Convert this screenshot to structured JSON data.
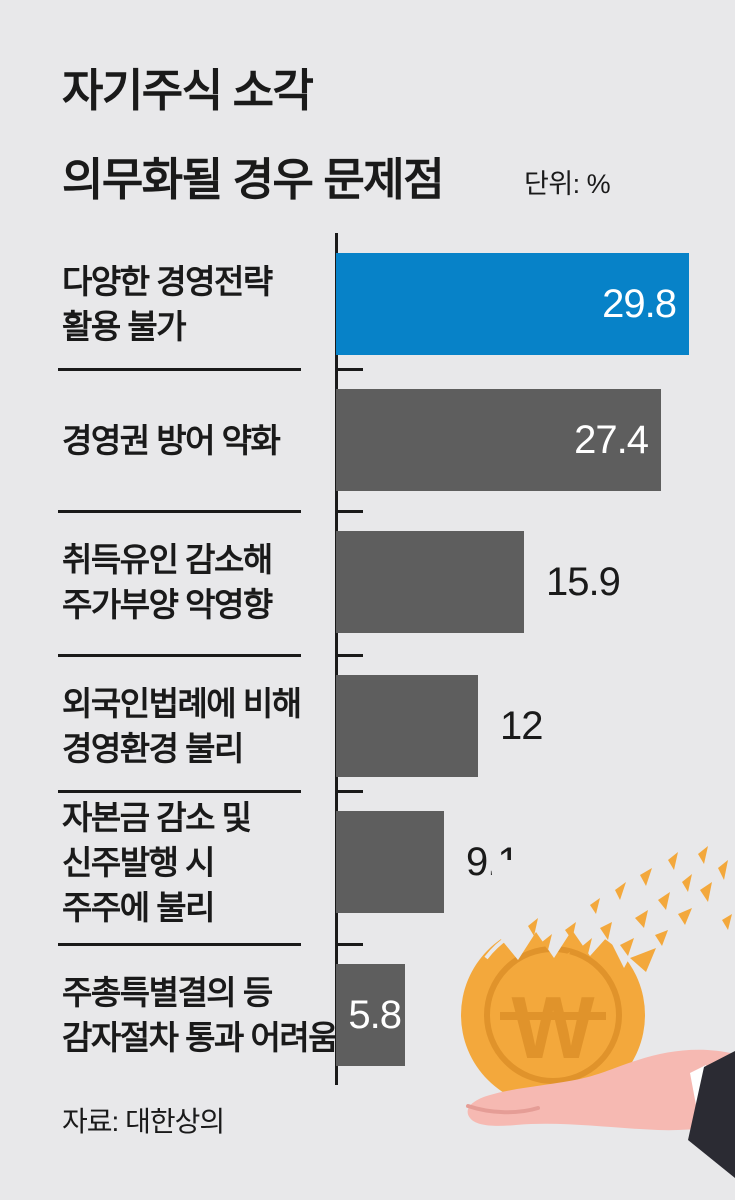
{
  "header": {
    "title_line1": "자기주식 소각",
    "title_line2": "의무화될 경우 문제점",
    "unit_label": "단위: %"
  },
  "source": {
    "label": "자료: 대한상의"
  },
  "chart_data": {
    "type": "bar",
    "orientation": "horizontal",
    "title": "자기주식 소각 의무화될 경우 문제점",
    "unit": "%",
    "xlim": [
      0,
      30
    ],
    "grid": false,
    "legend": "none",
    "categories": [
      "다양한 경영전략 활용 불가",
      "경영권 방어 약화",
      "취득유인 감소해 주가부양 악영향",
      "외국인법례에 비해 경영환경 불리",
      "자본금 감소 및 신주발행 시 주주에 불리",
      "주총특별결의 등 감자절차 통과 어려움"
    ],
    "values": [
      29.8,
      27.4,
      15.9,
      12,
      9.1,
      5.8
    ],
    "items": [
      {
        "label_lines": [
          "다양한 경영전략",
          "활용 불가"
        ],
        "value": 29.8,
        "display": "29.8",
        "highlight": true,
        "value_inside": true
      },
      {
        "label_lines": [
          "경영권 방어 약화"
        ],
        "value": 27.4,
        "display": "27.4",
        "highlight": false,
        "value_inside": true
      },
      {
        "label_lines": [
          "취득유인 감소해",
          "주가부양 악영향"
        ],
        "value": 15.9,
        "display": "15.9",
        "highlight": false,
        "value_inside": false
      },
      {
        "label_lines": [
          "외국인법례에 비해",
          "경영환경 불리"
        ],
        "value": 12,
        "display": "12",
        "highlight": false,
        "value_inside": false
      },
      {
        "label_lines": [
          "자본금 감소 및",
          "신주발행 시",
          "주주에 불리"
        ],
        "value": 9.1,
        "display": "9.1",
        "highlight": false,
        "value_inside": false
      },
      {
        "label_lines": [
          "주총특별결의 등",
          "감자절차 통과 어려움"
        ],
        "value": 5.8,
        "display": "5.8",
        "highlight": false,
        "value_inside": true
      }
    ]
  },
  "illustration": {
    "name": "shattering-won-coin-on-hand",
    "currency_symbol": "W"
  },
  "theme": {
    "bg": "#e8e8ea",
    "ink": "#1a1a1a",
    "bar-highlight": "#0782c8",
    "bar-default": "#5e5e5e",
    "value-inside": "#ffffff",
    "coin": "#f3a83c",
    "coin-dark": "#e0932b",
    "hand": "#f6b9b2",
    "hand-shade": "#e59d96",
    "sleeve": "#2b2b33",
    "cuff": "#ffffff"
  }
}
